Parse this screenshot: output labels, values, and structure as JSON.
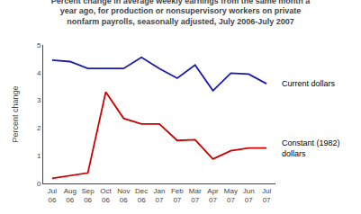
{
  "chart_data": {
    "type": "line",
    "title": "Percent change in average weekly earnings from the same month a\nyear ago, for production or nonsupervisory workers on private\nnonfarm payrolls, seasonally adjusted, July 2006-July 2007",
    "categories": [
      "Jul\n06",
      "Aug\n06",
      "Sep\n06",
      "Oct\n06",
      "Nov\n06",
      "Dec\n06",
      "Jan\n07",
      "Feb\n07",
      "Mar\n07",
      "Apr\n07",
      "May\n07",
      "Jun\n07",
      "Jul\n07"
    ],
    "series": [
      {
        "name": "Current dollars",
        "color": "#1a1aaa",
        "values": [
          4.45,
          4.4,
          4.15,
          4.15,
          4.15,
          4.55,
          4.15,
          3.8,
          4.28,
          3.35,
          3.98,
          3.95,
          3.6
        ]
      },
      {
        "name": "Constant (1982)\ndollars",
        "color": "#cc0000",
        "values": [
          0.18,
          0.28,
          0.38,
          3.3,
          2.35,
          2.15,
          2.15,
          1.55,
          1.58,
          0.88,
          1.18,
          1.28,
          1.28
        ]
      }
    ],
    "ylabel": "Percent change",
    "ylim": [
      0,
      5
    ],
    "yticks": [
      0,
      1,
      2,
      3,
      4,
      5
    ],
    "grid": false
  }
}
